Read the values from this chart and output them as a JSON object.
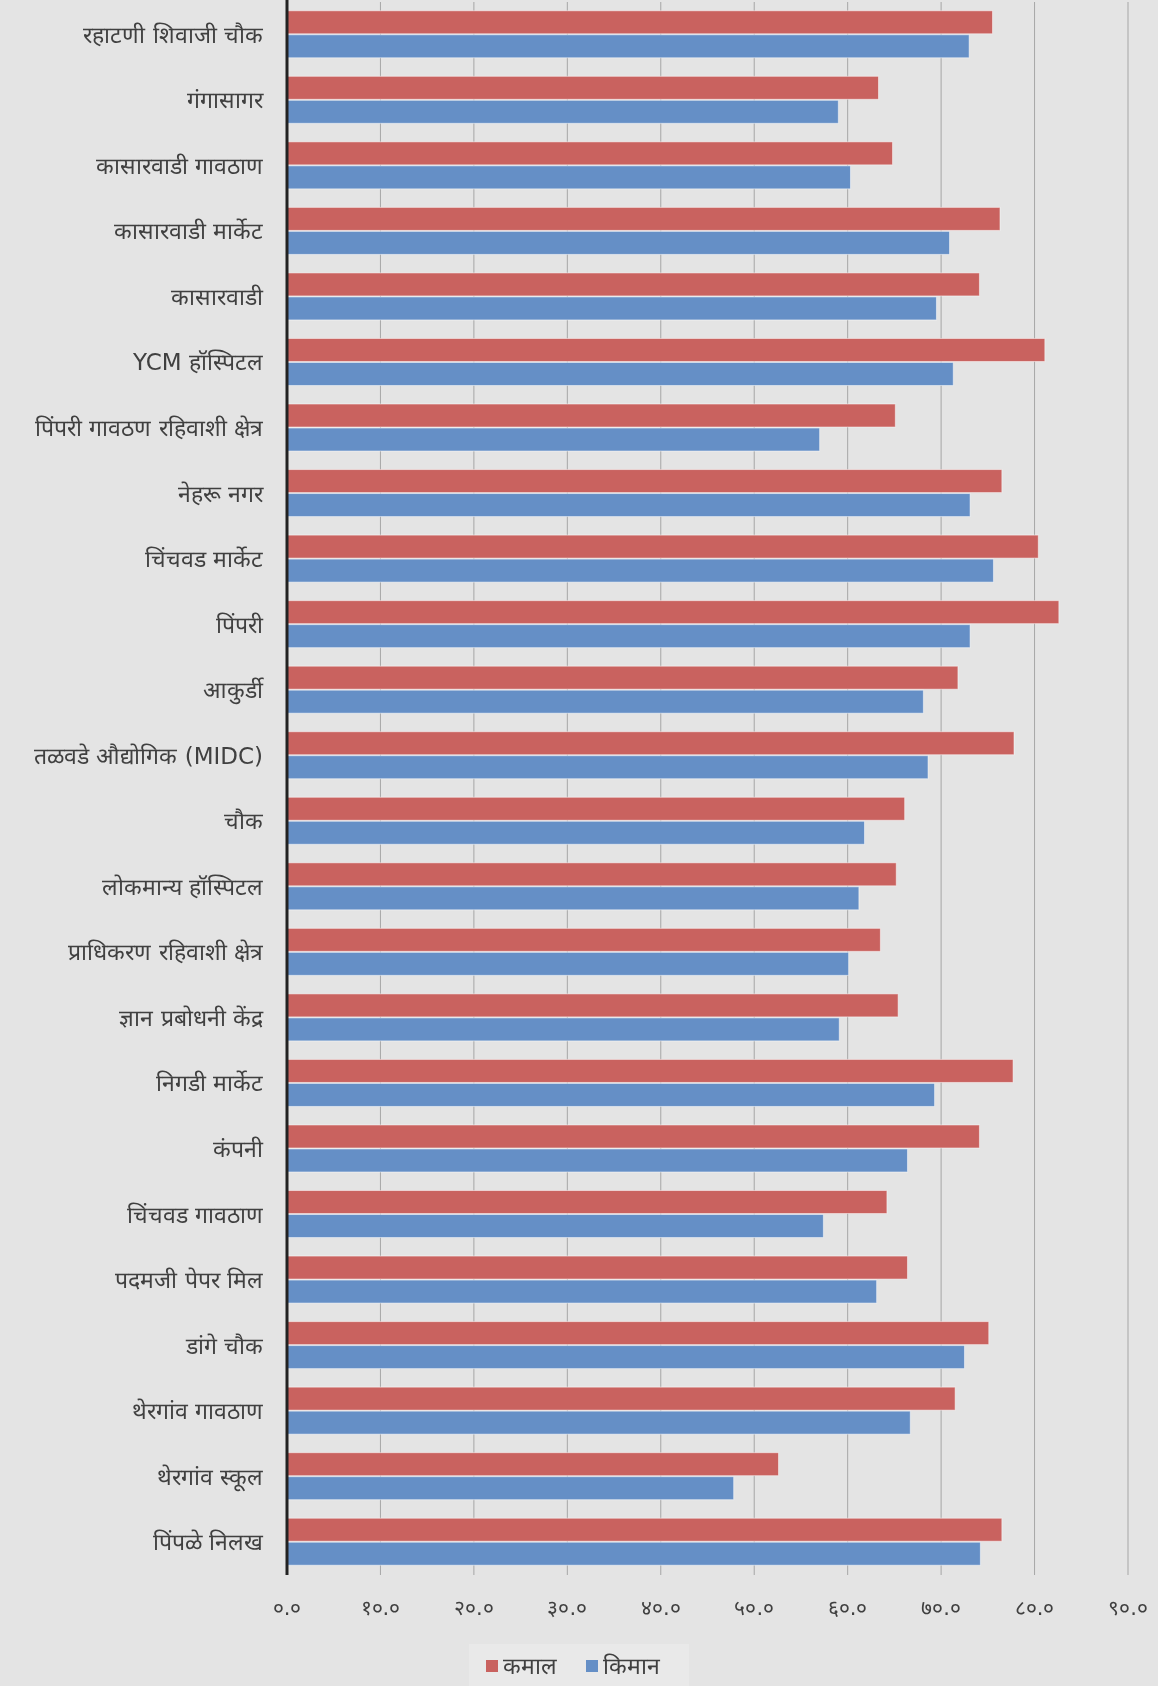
{
  "chart_data": {
    "type": "bar",
    "orientation": "horizontal",
    "categories": [
      "रहाटणी शिवाजी चौक",
      "गंगासागर",
      "कासारवाडी गावठाण",
      "कासारवाडी मार्केट",
      "कासारवाडी",
      "YCM हॉस्पिटल",
      "पिंपरी गावठण रहिवाशी क्षेत्र",
      "नेहरू नगर",
      "चिंचवड मार्केट",
      "पिंपरी",
      "आकुर्डी",
      "तळवडे औद्योगिक (MIDC)",
      "चौक",
      "लोकमान्य हॉस्पिटल",
      "प्राधिकरण रहिवाशी क्षेत्र",
      "ज्ञान प्रबोधनी केंद्र",
      "निगडी मार्केट",
      "कंपनी",
      "चिंचवड गावठाण",
      "पदमजी पेपर मिल",
      "डांगे चौक",
      "थेरगांव गावठाण",
      "थेरगांव स्कूल",
      "पिंपळे निलख"
    ],
    "series": [
      {
        "name": "कमाल",
        "color": "#c9625f",
        "values": [
          75.5,
          63.3,
          64.8,
          76.3,
          74.1,
          81.1,
          65.1,
          76.5,
          80.4,
          82.6,
          71.8,
          77.8,
          66.1,
          65.2,
          63.5,
          65.4,
          77.7,
          74.1,
          64.2,
          66.4,
          75.1,
          71.5,
          52.6,
          76.5
        ]
      },
      {
        "name": "किमान",
        "color": "#658fc6",
        "values": [
          73.0,
          59.0,
          60.3,
          70.9,
          69.5,
          71.3,
          57.0,
          73.1,
          75.6,
          73.1,
          68.1,
          68.6,
          61.8,
          61.2,
          60.1,
          59.1,
          69.3,
          66.4,
          57.4,
          63.1,
          72.5,
          66.7,
          47.8,
          74.2
        ]
      }
    ],
    "xlim": [
      0,
      90
    ],
    "xticks": [
      {
        "value": 0,
        "label": "०.०"
      },
      {
        "value": 10,
        "label": "१०.०"
      },
      {
        "value": 20,
        "label": "२०.०"
      },
      {
        "value": 30,
        "label": "३०.०"
      },
      {
        "value": 40,
        "label": "४०.०"
      },
      {
        "value": 50,
        "label": "५०.०"
      },
      {
        "value": 60,
        "label": "६०.०"
      },
      {
        "value": 70,
        "label": "७०.०"
      },
      {
        "value": 80,
        "label": "८०.०"
      },
      {
        "value": 90,
        "label": "९०.०"
      }
    ],
    "grid": "x",
    "legend": "bottom"
  }
}
